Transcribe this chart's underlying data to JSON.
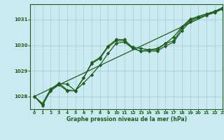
{
  "title": "",
  "xlabel": "Graphe pression niveau de la mer (hPa)",
  "xlim": [
    -0.5,
    23
  ],
  "ylim": [
    1027.5,
    1031.6
  ],
  "yticks": [
    1028,
    1029,
    1030,
    1031
  ],
  "xticks": [
    0,
    1,
    2,
    3,
    4,
    5,
    6,
    7,
    8,
    9,
    10,
    11,
    12,
    13,
    14,
    15,
    16,
    17,
    18,
    19,
    20,
    21,
    22,
    23
  ],
  "bg_color": "#cbe9f0",
  "grid_color": "#9ecfcc",
  "line_color": "#1e5e1e",
  "line1": [
    1028.0,
    1027.72,
    1028.3,
    1028.5,
    1028.48,
    1028.22,
    1028.72,
    1029.28,
    1029.48,
    1029.93,
    1030.17,
    1030.17,
    1029.92,
    1029.87,
    1029.82,
    1029.82,
    1030.07,
    1030.32,
    1030.72,
    1031.02,
    1031.12,
    1031.22,
    1031.32,
    1031.42
  ],
  "line2": [
    1028.0,
    1027.68,
    1028.22,
    1028.45,
    1028.22,
    1028.22,
    1028.52,
    1028.85,
    1029.22,
    1029.68,
    1030.08,
    1030.12,
    1029.87,
    1029.77,
    1029.77,
    1029.77,
    1029.97,
    1030.12,
    1030.57,
    1030.92,
    1031.07,
    1031.17,
    1031.27,
    1031.42
  ],
  "line3": [
    1028.0,
    1027.65,
    1028.25,
    1028.52,
    1028.25,
    1028.22,
    1028.72,
    1029.32,
    1029.52,
    1029.97,
    1030.22,
    1030.22,
    1029.87,
    1029.77,
    1029.82,
    1029.87,
    1030.07,
    1030.17,
    1030.67,
    1030.97,
    1031.12,
    1031.22,
    1031.32,
    1031.47
  ],
  "trend_x": [
    0,
    23
  ],
  "trend_y": [
    1028.0,
    1031.47
  ],
  "marker": "D",
  "markersize": 2.2,
  "linewidth": 0.9
}
